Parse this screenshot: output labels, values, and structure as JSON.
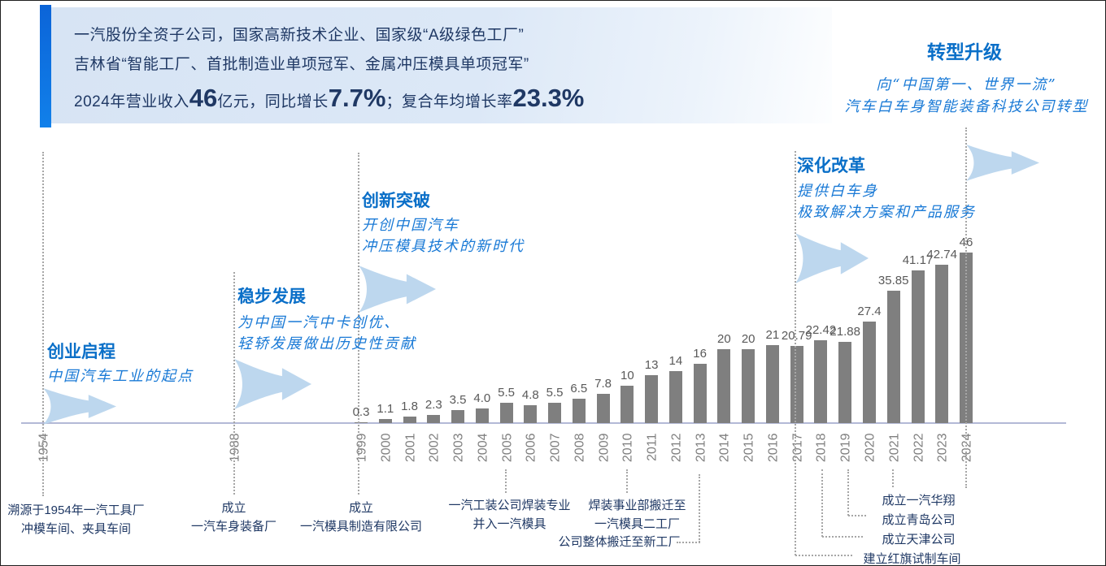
{
  "header": {
    "line1": "一汽股份全资子公司，国家高新技术企业、国家级“A级绿色工厂”",
    "line2": "吉林省“智能工厂、首批制造业单项冠军、金属冲压模具单项冠军”",
    "revenue": {
      "prefix": "2024年营业收入",
      "value": "46",
      "unit_growth": "亿元，同比增长",
      "growth": "7.7%",
      "cagr_label": "；复合年均增长率",
      "cagr": "23.3%"
    }
  },
  "eras": [
    {
      "title": "创业启程",
      "lines": [
        "中国汽车工业的起点"
      ]
    },
    {
      "title": "稳步发展",
      "lines": [
        "为中国一汽中卡创优、",
        "轻轿发展做出历史性贡献"
      ]
    },
    {
      "title": "创新突破",
      "lines": [
        "开创中国汽车",
        "冲压模具技术的新时代"
      ]
    },
    {
      "title": "深化改革",
      "lines": [
        "提供白车身",
        "极致解决方案和产品服务"
      ]
    },
    {
      "title": "转型升级",
      "lines": [
        "向“中国第一、世界一流”",
        "汽车白车身智能装备科技公司转型"
      ]
    }
  ],
  "chart_data": {
    "type": "bar",
    "x": [
      "1999",
      "2000",
      "2001",
      "2002",
      "2003",
      "2004",
      "2005",
      "2006",
      "2007",
      "2008",
      "2009",
      "2010",
      "2011",
      "2012",
      "2013",
      "2014",
      "2015",
      "2016",
      "2017",
      "2018",
      "2019",
      "2020",
      "2021",
      "2022",
      "2023",
      "2024"
    ],
    "values": [
      0.3,
      1.1,
      1.8,
      2.3,
      3.5,
      4.0,
      5.5,
      4.8,
      5.5,
      6.5,
      7.8,
      10,
      13,
      14,
      16,
      20,
      20,
      21,
      20.79,
      22.42,
      21.88,
      27.4,
      35.85,
      41.17,
      42.74,
      46
    ],
    "labels": [
      "0.3",
      "1.1",
      "1.8",
      "2.3",
      "3.5",
      "4.0",
      "5.5",
      "4.8",
      "5.5",
      "6.5",
      "7.8",
      "10",
      "13",
      "14",
      "16",
      "20",
      "20",
      "21",
      "20.79",
      "22.42",
      "21.88",
      "27.4",
      "35.85",
      "41.17",
      "42.74",
      "46"
    ],
    "axis_extra_years": [
      "1954",
      "1988"
    ],
    "title": "",
    "xlabel": "",
    "ylabel": "",
    "ylim": [
      0,
      46
    ],
    "grid": false,
    "bar_color": "#7f7f7f",
    "label_color": "#595959"
  },
  "annotations": [
    {
      "lines": [
        "溯源于1954年一汽工具厂",
        "冲模车间、夹具车间"
      ]
    },
    {
      "lines": [
        "成立",
        "一汽车身装备厂"
      ]
    },
    {
      "lines": [
        "成立",
        "一汽模具制造有限公司"
      ]
    },
    {
      "lines": [
        "一汽工装公司焊装专业",
        "并入一汽模具"
      ]
    },
    {
      "lines": [
        "焊装事业部搬迁至",
        "一汽模具二工厂"
      ]
    },
    {
      "lines": [
        "公司整体搬迁至新工厂"
      ]
    },
    {
      "lines": [
        "成立一汽华翔"
      ]
    },
    {
      "lines": [
        "成立青岛公司"
      ]
    },
    {
      "lines": [
        "成立天津公司"
      ]
    },
    {
      "lines": [
        "建立红旗试制车间"
      ]
    }
  ],
  "colors": {
    "accent_blue": "#0b6de0",
    "header_bg": "#d9e5f5",
    "navy_text": "#1f3864",
    "era_title_blue": "#0a6fc8",
    "era_desc_blue": "#1a7ad6",
    "arrow_fill": "#bdd7ee",
    "bar_gray": "#7f7f7f",
    "axis_line": "#b3b9d6",
    "dotted_gray": "#a6a6a6"
  }
}
